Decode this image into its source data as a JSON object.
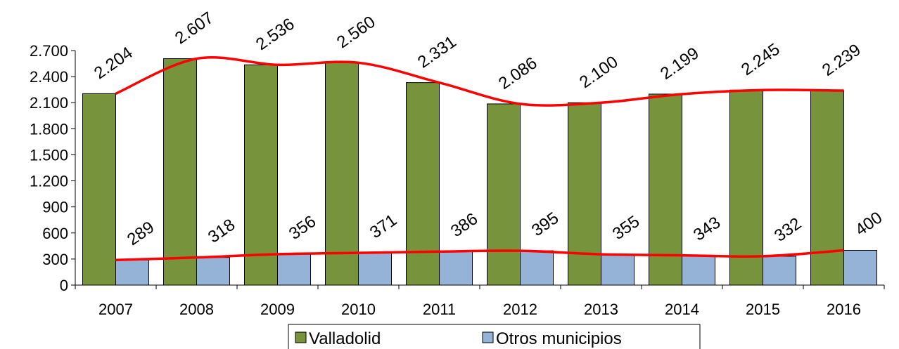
{
  "chart_data": {
    "type": "bar",
    "categories": [
      "2007",
      "2008",
      "2009",
      "2010",
      "2011",
      "2012",
      "2013",
      "2014",
      "2015",
      "2016"
    ],
    "series": [
      {
        "name": "Valladolid",
        "color": "#77933c",
        "values": [
          2204,
          2607,
          2536,
          2560,
          2331,
          2086,
          2100,
          2199,
          2245,
          2239
        ],
        "value_labels": [
          "2.204",
          "2.607",
          "2.536",
          "2.560",
          "2.331",
          "2.086",
          "2.100",
          "2.199",
          "2.245",
          "2.239"
        ]
      },
      {
        "name": "Otros municipios",
        "color": "#95b3d7",
        "values": [
          289,
          318,
          356,
          371,
          386,
          395,
          355,
          343,
          332,
          400
        ]
      }
    ],
    "ylim": [
      0,
      2700
    ],
    "yticks": [
      0,
      300,
      600,
      900,
      {
        "value": 1200,
        "label": "1.200"
      },
      {
        "value": 1500,
        "label": "1.500"
      },
      {
        "value": 1800,
        "label": "1.800"
      },
      {
        "value": 2100,
        "label": "2.100"
      },
      {
        "value": 2400,
        "label": "2.400"
      },
      {
        "value": 2700,
        "label": "2.700"
      }
    ],
    "trendline_color": "#ff0000",
    "legend": "bottom"
  }
}
